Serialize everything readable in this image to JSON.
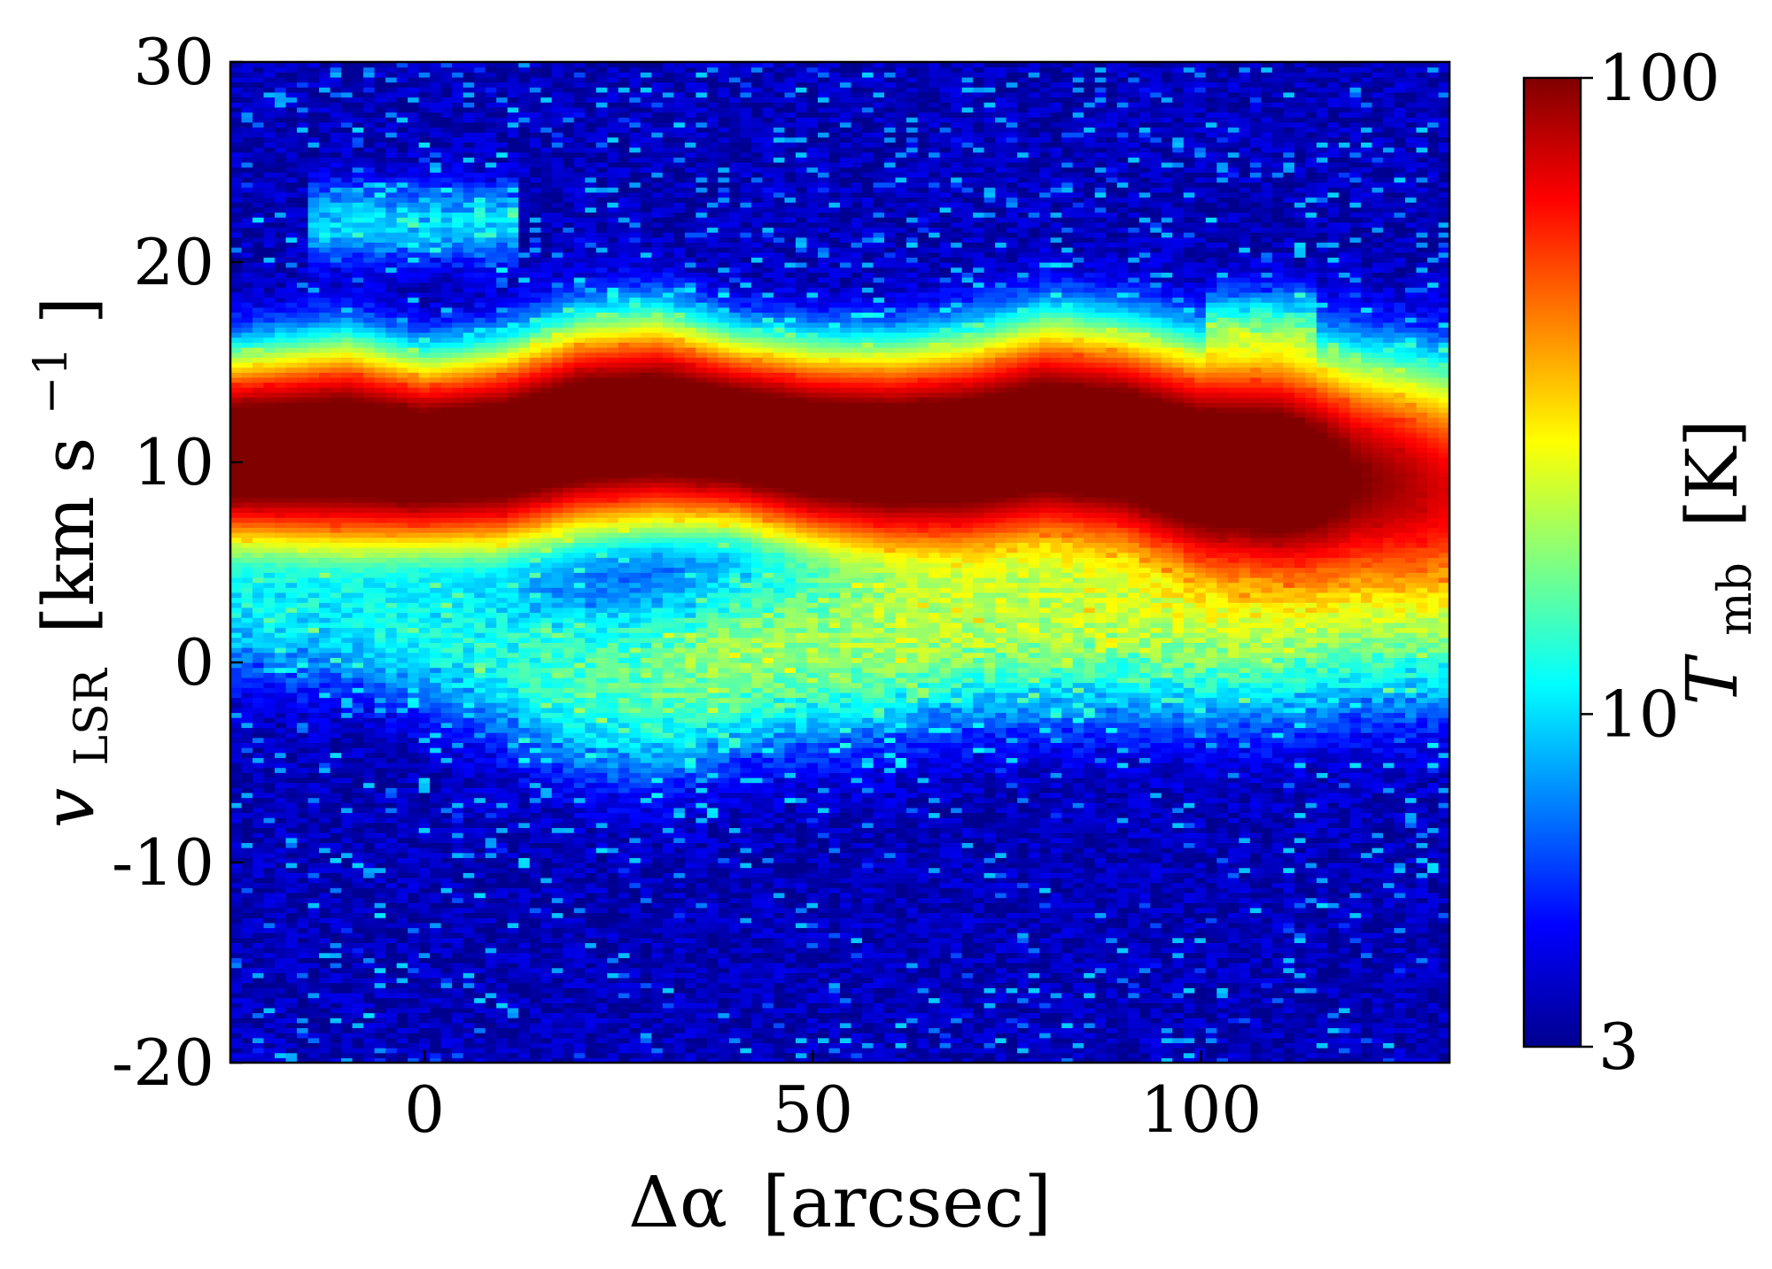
{
  "chart_data": {
    "type": "heatmap",
    "title": "",
    "xlabel": {
      "symbol": "Δα",
      "unit": "[arcsec]"
    },
    "ylabel": {
      "symbol": "v",
      "subscript": "LSR",
      "unit": "[km s",
      "unit_sup": "−1",
      "unit_close": "]"
    },
    "colorbar_label": {
      "symbol": "T",
      "subscript": "mb",
      "unit": "[K]"
    },
    "xlim": [
      -25,
      132
    ],
    "ylim": [
      -20,
      30
    ],
    "x_ticks": [
      0,
      50,
      100
    ],
    "x_tick_labels": [
      "0",
      "50",
      "100"
    ],
    "y_ticks": [
      -20,
      -10,
      0,
      10,
      20,
      30
    ],
    "y_tick_labels": [
      "-20",
      "-10",
      "0",
      "10",
      "20",
      "30"
    ],
    "color_scale": "log",
    "colormap": "jet",
    "clim": [
      3,
      100
    ],
    "colorbar_ticks": [
      3,
      10,
      100
    ],
    "colorbar_tick_labels": [
      "3",
      "10",
      "100"
    ],
    "colormap_stops": [
      "#00008f",
      "#0000ff",
      "#0080ff",
      "#00ffff",
      "#80ff80",
      "#ffff00",
      "#ff8000",
      "#ff0000",
      "#800000"
    ],
    "main_band": {
      "x": [
        -25,
        -10,
        0,
        10,
        20,
        30,
        40,
        50,
        60,
        70,
        80,
        90,
        100,
        110,
        120,
        132
      ],
      "center_velocity": [
        10.5,
        10.7,
        10.3,
        10.6,
        11.6,
        11.9,
        11.4,
        10.7,
        10.4,
        10.6,
        11.3,
        10.9,
        9.8,
        9.6,
        9.2,
        8.8
      ],
      "peak_temperature": [
        100,
        100,
        100,
        100,
        100,
        100,
        100,
        100,
        100,
        100,
        100,
        100,
        100,
        100,
        60,
        40
      ],
      "width": [
        2.2,
        2.4,
        2.2,
        2.3,
        2.4,
        2.4,
        2.2,
        2.3,
        2.4,
        2.5,
        2.6,
        2.6,
        2.7,
        2.8,
        2.9,
        3.0
      ]
    },
    "secondary_band": {
      "x": [
        -25,
        -10,
        0,
        10,
        20,
        30,
        40,
        50,
        60,
        70,
        80,
        90,
        100,
        110,
        120,
        132
      ],
      "center_velocity": [
        2.5,
        2.2,
        1.5,
        0.5,
        -0.7,
        -0.8,
        0.3,
        1.0,
        1.5,
        2.2,
        2.5,
        2.5,
        2.5,
        2.5,
        2.8,
        3.0
      ],
      "peak_temperature": [
        7,
        7,
        8,
        9,
        11,
        13,
        15,
        16,
        17,
        18,
        18,
        18,
        18,
        17,
        15,
        14
      ],
      "width": [
        2.0,
        2.2,
        2.4,
        2.6,
        2.8,
        2.8,
        2.8,
        2.8,
        2.8,
        2.8,
        2.8,
        2.9,
        3.0,
        3.0,
        3.0,
        3.0
      ]
    },
    "faint_features": [
      {
        "x_range": [
          -15,
          12
        ],
        "center_velocity": 22,
        "peak_temperature": 7
      },
      {
        "x_range": [
          100,
          115
        ],
        "center_velocity": 16.5,
        "peak_temperature": 9
      }
    ],
    "noise_level": 3.2
  }
}
